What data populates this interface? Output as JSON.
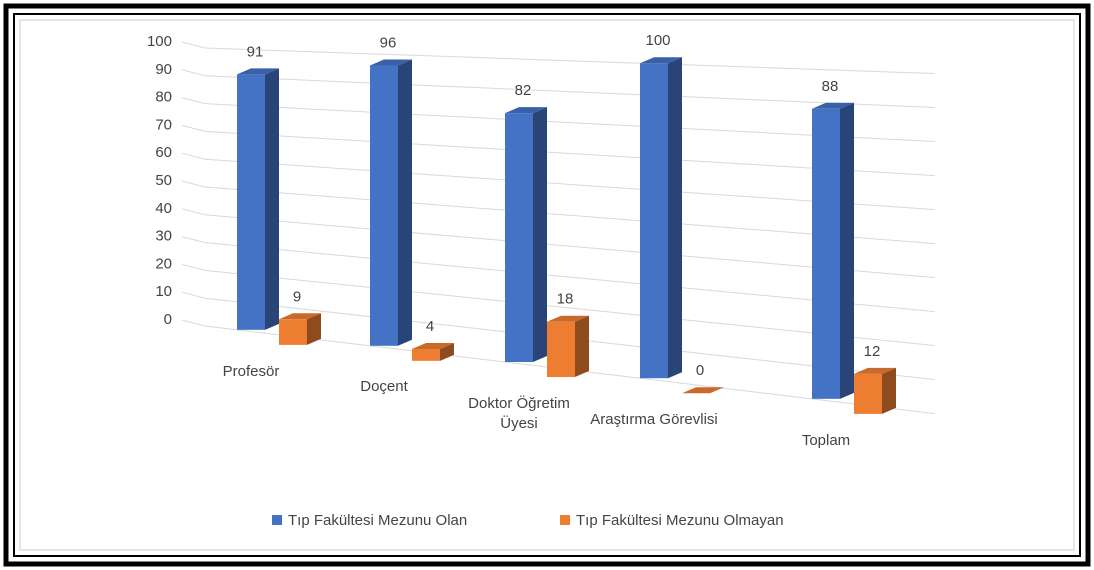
{
  "chart_data": {
    "type": "bar3d",
    "categories": [
      "Profesör",
      "Doçent",
      "Doktor Öğretim Üyesi",
      "Araştırma Görevlisi",
      "Toplam"
    ],
    "series": [
      {
        "name": "Tıp Fakültesi Mezunu Olan",
        "color": "#4472c4",
        "values": [
          91,
          96,
          82,
          100,
          88
        ]
      },
      {
        "name": "Tıp Fakültesi Mezunu Olmayan",
        "color": "#ed7d31",
        "values": [
          9,
          4,
          18,
          0,
          12
        ]
      }
    ],
    "ylim": [
      0,
      100
    ],
    "yticks": [
      0,
      10,
      20,
      30,
      40,
      50,
      60,
      70,
      80,
      90,
      100
    ],
    "grid": true,
    "legend": "bottom"
  }
}
